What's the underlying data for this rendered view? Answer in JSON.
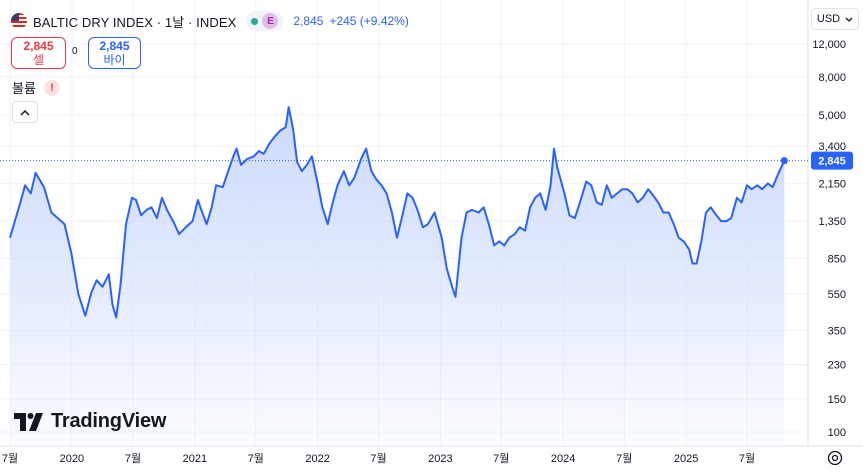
{
  "header": {
    "title": "BALTIC DRY INDEX · 1날 · INDEX",
    "badge_e": "E",
    "last": "2,845",
    "change": "+245 (+9.42%)"
  },
  "trade": {
    "sell_price": "2,845",
    "sell_label": "셀",
    "spread": "0",
    "buy_price": "2,845",
    "buy_label": "바이"
  },
  "volume_label": "볼륨",
  "currency": "USD",
  "logo": "TradingView",
  "colors": {
    "line": "#2962ff",
    "fill": "#dde6fb",
    "price_label_bg": "#2962ff",
    "grid": "#f0f3fa"
  },
  "icons": [
    "us-flag-icon",
    "market-open-dot-icon",
    "warning-icon",
    "chevron-up-icon",
    "chevron-down-icon",
    "tradingview-logo-icon",
    "settings-icon"
  ],
  "chart_data": {
    "type": "area",
    "scale": "log",
    "grid": true,
    "y_ticks": [
      100,
      150,
      230,
      350,
      550,
      850,
      1350,
      2150,
      3400,
      5000,
      8000,
      12000
    ],
    "y_tick_labels": [
      "100",
      "150",
      "230",
      "350",
      "550",
      "850",
      "1,350",
      "2,150",
      "3,400",
      "5,000",
      "8,000",
      "12,000"
    ],
    "x_ticks": [
      {
        "date": "2019-07-01",
        "label": "7월"
      },
      {
        "date": "2020-01-01",
        "label": "2020"
      },
      {
        "date": "2020-07-01",
        "label": "7월"
      },
      {
        "date": "2021-01-01",
        "label": "2021"
      },
      {
        "date": "2021-07-01",
        "label": "7월"
      },
      {
        "date": "2022-01-01",
        "label": "2022"
      },
      {
        "date": "2022-07-01",
        "label": "7월"
      },
      {
        "date": "2023-01-01",
        "label": "2023"
      },
      {
        "date": "2023-07-01",
        "label": "7월"
      },
      {
        "date": "2024-01-01",
        "label": "2024"
      },
      {
        "date": "2024-07-01",
        "label": "7월"
      },
      {
        "date": "2025-01-01",
        "label": "2025"
      },
      {
        "date": "2025-07-01",
        "label": "7월"
      }
    ],
    "last_value": 2845,
    "last_value_label": "2,845",
    "series": [
      {
        "points": [
          [
            "2019-07-01",
            1100
          ],
          [
            "2019-08-01",
            1700
          ],
          [
            "2019-08-15",
            2100
          ],
          [
            "2019-09-01",
            1900
          ],
          [
            "2019-09-15",
            2450
          ],
          [
            "2019-10-10",
            2050
          ],
          [
            "2019-11-01",
            1500
          ],
          [
            "2019-11-20",
            1400
          ],
          [
            "2019-12-10",
            1300
          ],
          [
            "2019-12-31",
            900
          ],
          [
            "2020-01-20",
            550
          ],
          [
            "2020-02-10",
            420
          ],
          [
            "2020-02-28",
            560
          ],
          [
            "2020-03-15",
            650
          ],
          [
            "2020-04-01",
            600
          ],
          [
            "2020-04-20",
            700
          ],
          [
            "2020-05-01",
            480
          ],
          [
            "2020-05-12",
            410
          ],
          [
            "2020-05-25",
            620
          ],
          [
            "2020-06-10",
            1300
          ],
          [
            "2020-06-28",
            1800
          ],
          [
            "2020-07-10",
            1750
          ],
          [
            "2020-07-25",
            1450
          ],
          [
            "2020-08-10",
            1550
          ],
          [
            "2020-08-25",
            1600
          ],
          [
            "2020-09-10",
            1400
          ],
          [
            "2020-09-25",
            1800
          ],
          [
            "2020-10-10",
            1550
          ],
          [
            "2020-10-28",
            1350
          ],
          [
            "2020-11-15",
            1150
          ],
          [
            "2020-12-05",
            1250
          ],
          [
            "2020-12-25",
            1350
          ],
          [
            "2021-01-10",
            1750
          ],
          [
            "2021-01-20",
            1550
          ],
          [
            "2021-02-05",
            1300
          ],
          [
            "2021-02-20",
            1600
          ],
          [
            "2021-03-05",
            2100
          ],
          [
            "2021-03-25",
            2050
          ],
          [
            "2021-04-10",
            2500
          ],
          [
            "2021-04-25",
            3000
          ],
          [
            "2021-05-05",
            3300
          ],
          [
            "2021-05-18",
            2700
          ],
          [
            "2021-06-05",
            2900
          ],
          [
            "2021-06-25",
            3000
          ],
          [
            "2021-07-10",
            3200
          ],
          [
            "2021-07-25",
            3100
          ],
          [
            "2021-08-10",
            3500
          ],
          [
            "2021-08-25",
            3800
          ],
          [
            "2021-09-10",
            4100
          ],
          [
            "2021-09-28",
            4300
          ],
          [
            "2021-10-07",
            5500
          ],
          [
            "2021-10-20",
            4200
          ],
          [
            "2021-11-01",
            2800
          ],
          [
            "2021-11-15",
            2500
          ],
          [
            "2021-11-30",
            2700
          ],
          [
            "2021-12-15",
            3000
          ],
          [
            "2021-12-31",
            2200
          ],
          [
            "2022-01-15",
            1600
          ],
          [
            "2022-01-31",
            1300
          ],
          [
            "2022-02-15",
            1700
          ],
          [
            "2022-03-01",
            2100
          ],
          [
            "2022-03-20",
            2500
          ],
          [
            "2022-04-05",
            2100
          ],
          [
            "2022-04-20",
            2300
          ],
          [
            "2022-05-10",
            2900
          ],
          [
            "2022-05-25",
            3300
          ],
          [
            "2022-06-10",
            2500
          ],
          [
            "2022-06-25",
            2250
          ],
          [
            "2022-07-10",
            2100
          ],
          [
            "2022-07-25",
            1900
          ],
          [
            "2022-08-10",
            1500
          ],
          [
            "2022-08-25",
            1100
          ],
          [
            "2022-09-10",
            1450
          ],
          [
            "2022-09-25",
            1900
          ],
          [
            "2022-10-10",
            1800
          ],
          [
            "2022-10-25",
            1550
          ],
          [
            "2022-11-10",
            1250
          ],
          [
            "2022-11-25",
            1300
          ],
          [
            "2022-12-15",
            1500
          ],
          [
            "2023-01-05",
            1100
          ],
          [
            "2023-01-20",
            750
          ],
          [
            "2023-02-05",
            600
          ],
          [
            "2023-02-15",
            530
          ],
          [
            "2023-03-05",
            1100
          ],
          [
            "2023-03-20",
            1500
          ],
          [
            "2023-04-05",
            1550
          ],
          [
            "2023-04-25",
            1500
          ],
          [
            "2023-05-10",
            1600
          ],
          [
            "2023-05-25",
            1300
          ],
          [
            "2023-06-10",
            1000
          ],
          [
            "2023-06-25",
            1050
          ],
          [
            "2023-07-10",
            1000
          ],
          [
            "2023-07-25",
            1100
          ],
          [
            "2023-08-10",
            1150
          ],
          [
            "2023-08-25",
            1250
          ],
          [
            "2023-09-10",
            1200
          ],
          [
            "2023-09-25",
            1600
          ],
          [
            "2023-10-10",
            1800
          ],
          [
            "2023-10-25",
            1900
          ],
          [
            "2023-11-10",
            1550
          ],
          [
            "2023-11-25",
            2100
          ],
          [
            "2023-12-05",
            3300
          ],
          [
            "2023-12-15",
            2600
          ],
          [
            "2024-01-05",
            1900
          ],
          [
            "2024-01-20",
            1450
          ],
          [
            "2024-02-05",
            1400
          ],
          [
            "2024-02-20",
            1700
          ],
          [
            "2024-03-10",
            2200
          ],
          [
            "2024-03-25",
            2100
          ],
          [
            "2024-04-10",
            1700
          ],
          [
            "2024-04-25",
            1650
          ],
          [
            "2024-05-10",
            2100
          ],
          [
            "2024-05-25",
            1800
          ],
          [
            "2024-06-10",
            1900
          ],
          [
            "2024-06-25",
            2000
          ],
          [
            "2024-07-10",
            2000
          ],
          [
            "2024-07-25",
            1900
          ],
          [
            "2024-08-10",
            1700
          ],
          [
            "2024-08-25",
            1800
          ],
          [
            "2024-09-10",
            2000
          ],
          [
            "2024-09-25",
            1850
          ],
          [
            "2024-10-10",
            1700
          ],
          [
            "2024-10-25",
            1500
          ],
          [
            "2024-11-10",
            1500
          ],
          [
            "2024-11-25",
            1300
          ],
          [
            "2024-12-10",
            1100
          ],
          [
            "2024-12-25",
            1050
          ],
          [
            "2025-01-10",
            950
          ],
          [
            "2025-01-20",
            800
          ],
          [
            "2025-02-01",
            800
          ],
          [
            "2025-02-15",
            1050
          ],
          [
            "2025-03-01",
            1500
          ],
          [
            "2025-03-15",
            1600
          ],
          [
            "2025-04-01",
            1450
          ],
          [
            "2025-04-15",
            1350
          ],
          [
            "2025-05-01",
            1350
          ],
          [
            "2025-05-15",
            1400
          ],
          [
            "2025-06-01",
            1800
          ],
          [
            "2025-06-15",
            1700
          ],
          [
            "2025-07-01",
            2100
          ],
          [
            "2025-07-15",
            2000
          ],
          [
            "2025-08-01",
            2100
          ],
          [
            "2025-08-15",
            2000
          ],
          [
            "2025-09-01",
            2150
          ],
          [
            "2025-09-15",
            2050
          ],
          [
            "2025-10-01",
            2400
          ],
          [
            "2025-10-10",
            2600
          ],
          [
            "2025-10-20",
            2845
          ]
        ]
      }
    ]
  }
}
